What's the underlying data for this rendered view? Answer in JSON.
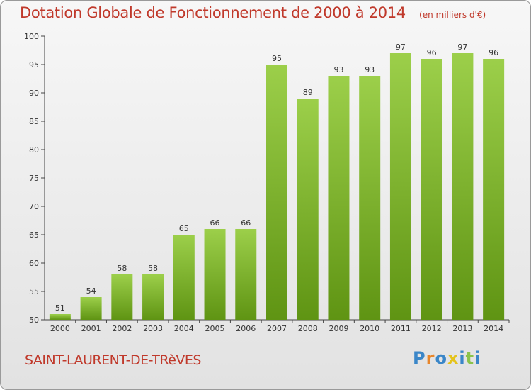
{
  "title": "Dotation Globale de Fonctionnement de 2000 à 2014",
  "subtitle": "(en milliers d'€)",
  "commune": "SAINT-LAURENT-DE-TRèVES",
  "logo": {
    "text": "Proxiti",
    "letter_colors": [
      "#3a86c8",
      "#e8862a",
      "#3a86c8",
      "#e5c31b",
      "#3a86c8",
      "#8bc34a",
      "#3a86c8"
    ]
  },
  "colors": {
    "bar_top": "#9ccf4a",
    "bar_bottom": "#5f9413",
    "accent": "#c0392b"
  },
  "chart_data": {
    "type": "bar",
    "categories": [
      "2000",
      "2001",
      "2002",
      "2003",
      "2004",
      "2005",
      "2006",
      "2007",
      "2008",
      "2009",
      "2010",
      "2011",
      "2012",
      "2013",
      "2014"
    ],
    "values": [
      51,
      54,
      58,
      58,
      65,
      66,
      66,
      95,
      89,
      93,
      93,
      97,
      96,
      97,
      96
    ],
    "ylim": [
      50,
      100
    ],
    "yticks": [
      50,
      55,
      60,
      65,
      70,
      75,
      80,
      85,
      90,
      95,
      100
    ],
    "grid": false,
    "data_labels": true
  }
}
